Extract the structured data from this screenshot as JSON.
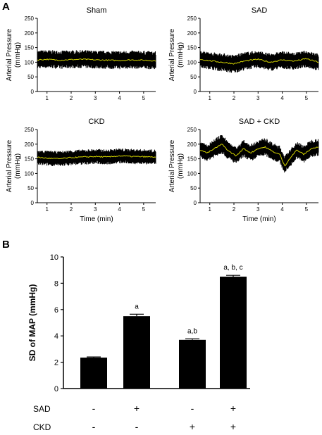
{
  "panel_labels": {
    "a": "A",
    "b": "B"
  },
  "colors": {
    "trace": "#000000",
    "mean_line": "#d4d400",
    "bar": "#000000"
  },
  "chart_data": [
    {
      "type": "line",
      "title": "Sham",
      "xlabel": "",
      "ylabel": "Arterial Pressure (mmHg)",
      "ylabel_lines": [
        "Arterial Pressure",
        "(mmHg)"
      ],
      "xlim": [
        0.6,
        5.5
      ],
      "ylim": [
        0,
        250
      ],
      "xticks": [
        1,
        2,
        3,
        4,
        5
      ],
      "yticks": [
        0,
        50,
        100,
        150,
        200,
        250
      ],
      "series": [
        {
          "x": [
            0.6,
            1.0,
            1.5,
            2.0,
            2.5,
            3.0,
            3.5,
            4.0,
            4.5,
            5.0,
            5.5
          ],
          "y": [
            108,
            110,
            107,
            109,
            110,
            108,
            107,
            106,
            108,
            107,
            105
          ]
        },
        {
          "x": [
            0.6,
            1.0,
            1.5,
            2.0,
            2.5,
            3.0,
            3.5,
            4.0,
            4.5,
            5.0,
            5.5
          ],
          "y": [
            140,
            142,
            140,
            141,
            142,
            140,
            139,
            139,
            140,
            139,
            137
          ]
        },
        {
          "x": [
            0.6,
            1.0,
            1.5,
            2.0,
            2.5,
            3.0,
            3.5,
            4.0,
            4.5,
            5.0,
            5.5
          ],
          "y": [
            78,
            80,
            77,
            79,
            80,
            78,
            77,
            76,
            78,
            77,
            75
          ]
        }
      ]
    },
    {
      "type": "line",
      "title": "SAD",
      "xlabel": "",
      "ylabel": "Arterial Pressure (mmHg)",
      "ylabel_lines": [
        "Arterial Pressure",
        "(mmHg)"
      ],
      "xlim": [
        0.6,
        5.5
      ],
      "ylim": [
        0,
        250
      ],
      "xticks": [
        1,
        2,
        3,
        4,
        5
      ],
      "yticks": [
        0,
        50,
        100,
        150,
        200,
        250
      ],
      "series": [
        {
          "x": [
            0.6,
            1.0,
            1.5,
            2.0,
            2.5,
            3.0,
            3.5,
            4.0,
            4.5,
            5.0,
            5.5
          ],
          "y": [
            110,
            105,
            100,
            95,
            105,
            110,
            100,
            108,
            104,
            112,
            100
          ]
        },
        {
          "x": [
            0.6,
            1.0,
            1.5,
            2.0,
            2.5,
            3.0,
            3.5,
            4.0,
            4.5,
            5.0,
            5.5
          ],
          "y": [
            142,
            135,
            132,
            125,
            136,
            140,
            130,
            138,
            133,
            140,
            130
          ]
        },
        {
          "x": [
            0.6,
            1.0,
            1.5,
            2.0,
            2.5,
            3.0,
            3.5,
            4.0,
            4.5,
            5.0,
            5.5
          ],
          "y": [
            80,
            76,
            68,
            62,
            74,
            80,
            70,
            78,
            74,
            82,
            70
          ]
        }
      ]
    },
    {
      "type": "line",
      "title": "CKD",
      "xlabel": "Time (min)",
      "ylabel": "Arterial Pressure (mmHg)",
      "ylabel_lines": [
        "Arterial Pressure",
        "(mmHg)"
      ],
      "xlim": [
        0.6,
        5.5
      ],
      "ylim": [
        0,
        250
      ],
      "xticks": [
        1,
        2,
        3,
        4,
        5
      ],
      "yticks": [
        0,
        50,
        100,
        150,
        200,
        250
      ],
      "series": [
        {
          "x": [
            0.6,
            1.0,
            1.5,
            2.0,
            2.5,
            3.0,
            3.5,
            4.0,
            4.5,
            5.0,
            5.5
          ],
          "y": [
            155,
            152,
            150,
            154,
            156,
            158,
            156,
            160,
            158,
            157,
            156
          ]
        },
        {
          "x": [
            0.6,
            1.0,
            1.5,
            2.0,
            2.5,
            3.0,
            3.5,
            4.0,
            4.5,
            5.0,
            5.5
          ],
          "y": [
            180,
            178,
            176,
            180,
            182,
            184,
            182,
            186,
            184,
            183,
            182
          ]
        },
        {
          "x": [
            0.6,
            1.0,
            1.5,
            2.0,
            2.5,
            3.0,
            3.5,
            4.0,
            4.5,
            5.0,
            5.5
          ],
          "y": [
            128,
            126,
            124,
            128,
            130,
            132,
            130,
            134,
            132,
            131,
            130
          ]
        }
      ]
    },
    {
      "type": "line",
      "title": "SAD + CKD",
      "xlabel": "Time (min)",
      "ylabel": "Arterial Pressure (mmHg)",
      "ylabel_lines": [
        "Arterial Pressure",
        "(mmHg)"
      ],
      "xlim": [
        0.6,
        5.5
      ],
      "ylim": [
        0,
        250
      ],
      "xticks": [
        1,
        2,
        3,
        4,
        5
      ],
      "yticks": [
        0,
        50,
        100,
        150,
        200,
        250
      ],
      "series": [
        {
          "x": [
            0.6,
            0.9,
            1.2,
            1.5,
            1.8,
            2.1,
            2.4,
            2.7,
            3.0,
            3.3,
            3.6,
            3.9,
            4.1,
            4.3,
            4.6,
            4.9,
            5.2,
            5.5
          ],
          "y": [
            180,
            170,
            185,
            200,
            175,
            160,
            185,
            170,
            185,
            190,
            175,
            165,
            125,
            150,
            180,
            165,
            185,
            190
          ]
        },
        {
          "x": [
            0.6,
            0.9,
            1.2,
            1.5,
            1.8,
            2.1,
            2.4,
            2.7,
            3.0,
            3.3,
            3.6,
            3.9,
            4.1,
            4.3,
            4.6,
            4.9,
            5.2,
            5.5
          ],
          "y": [
            210,
            200,
            218,
            235,
            208,
            190,
            215,
            200,
            215,
            222,
            205,
            195,
            160,
            180,
            210,
            196,
            216,
            220
          ]
        },
        {
          "x": [
            0.6,
            0.9,
            1.2,
            1.5,
            1.8,
            2.1,
            2.4,
            2.7,
            3.0,
            3.3,
            3.6,
            3.9,
            4.1,
            4.3,
            4.6,
            4.9,
            5.2,
            5.5
          ],
          "y": [
            150,
            142,
            155,
            168,
            145,
            132,
            156,
            140,
            155,
            160,
            145,
            135,
            100,
            120,
            150,
            135,
            155,
            160
          ]
        }
      ]
    },
    {
      "type": "bar",
      "title": "",
      "xlabel": "",
      "ylabel": "SD of MAP (mmHg)",
      "ylim": [
        0,
        10
      ],
      "yticks": [
        0,
        2,
        4,
        6,
        8,
        10
      ],
      "categories": [
        "",
        "",
        "",
        ""
      ],
      "values": [
        2.35,
        5.5,
        3.7,
        8.5
      ],
      "errors": [
        0.05,
        0.15,
        0.08,
        0.1
      ],
      "annotations": [
        "",
        "a",
        "a,b",
        "a, b, c"
      ],
      "factor_rows": [
        {
          "label": "SAD",
          "marks": [
            "-",
            "+",
            "-",
            "+"
          ]
        },
        {
          "label": "CKD",
          "marks": [
            "-",
            "-",
            "+",
            "+"
          ]
        }
      ]
    }
  ]
}
